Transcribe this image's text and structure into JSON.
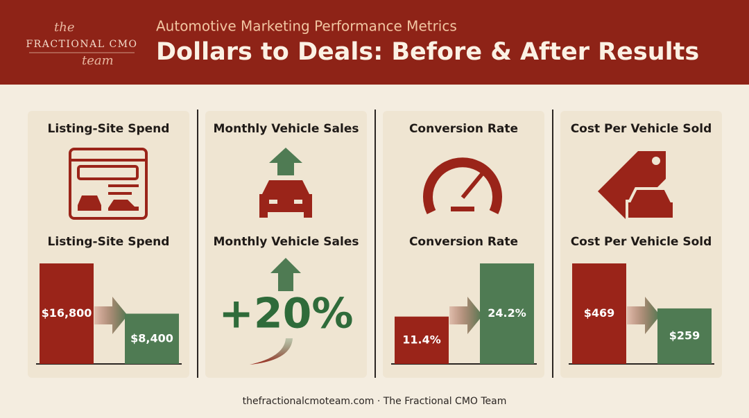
{
  "header": {
    "brand_top": "the",
    "brand": "FRACTIONAL CMO",
    "brand_bottom": "team",
    "subtitle": "Automotive Marketing Performance Metrics",
    "title": "Dollars to Deals: Before & After Results"
  },
  "colors": [
    "#9a2419",
    "#4f7b53"
  ],
  "panels": [
    {
      "title": "Listing-Site Spend",
      "subtitle": "Listing-Site Spend",
      "values": [
        16800,
        8400
      ],
      "value_labels": [
        "$16,800",
        "$8,400"
      ]
    },
    {
      "title": "Monthly Vehicle Sales",
      "subtitle": "Monthly Vehicle Sales",
      "change": "+20%"
    },
    {
      "title": "Conversion Rate",
      "subtitle": "Conversion Rate",
      "values": [
        11.4,
        24.2
      ],
      "value_labels": [
        "11.4%",
        "24.2%"
      ]
    },
    {
      "title": "Cost Per Vehicle Sold",
      "subtitle": "Cost Per Vehicle Sold",
      "values": [
        469,
        259
      ],
      "value_labels": [
        "$469",
        "$259"
      ]
    }
  ],
  "footer": "thefractionalcmoteam.com · The Fractional CMO Team"
}
